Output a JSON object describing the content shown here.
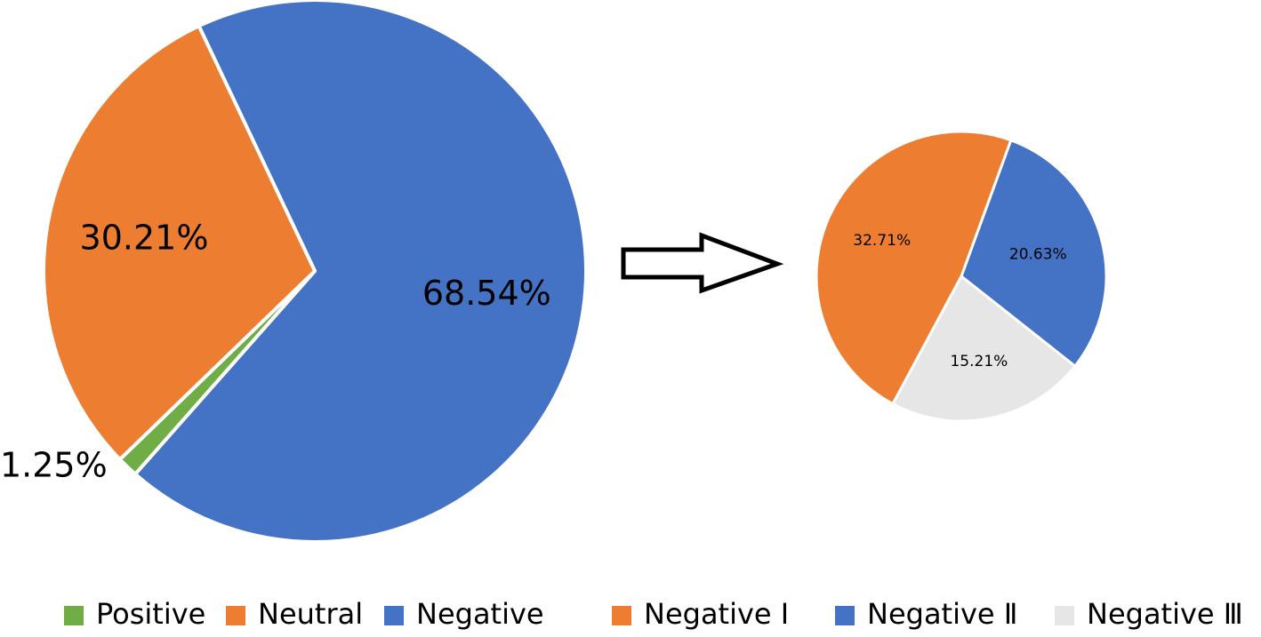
{
  "chart_data": [
    {
      "type": "pie",
      "slices": [
        {
          "name": "Positive",
          "value": 1.25,
          "label": "1.25%",
          "color": "#70AD47"
        },
        {
          "name": "Neutral",
          "value": 30.21,
          "label": "30.21%",
          "color": "#ED7D31"
        },
        {
          "name": "Negative",
          "value": 68.54,
          "label": "68.54%",
          "color": "#4472C4"
        }
      ],
      "legend": {
        "position": "bottom"
      }
    },
    {
      "type": "pie",
      "slices": [
        {
          "name": "Negative Ⅰ",
          "value": 32.71,
          "label": "32.71%",
          "color": "#ED7D31"
        },
        {
          "name": "Negative Ⅱ",
          "value": 20.63,
          "label": "20.63%",
          "color": "#4472C4"
        },
        {
          "name": "Negative Ⅲ",
          "value": 15.21,
          "label": "15.21%",
          "color": "#E7E6E6"
        }
      ],
      "legend": {
        "position": "bottom"
      }
    }
  ],
  "connector": {
    "icon": "right-arrow-icon"
  }
}
